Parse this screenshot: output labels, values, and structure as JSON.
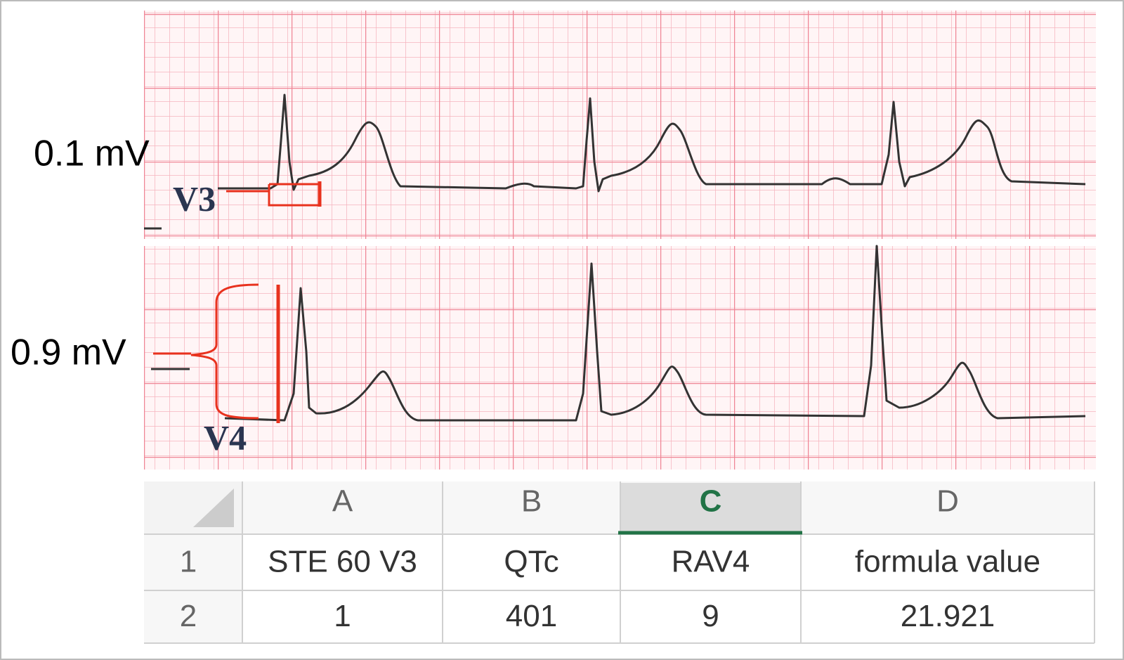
{
  "annotations": {
    "top_amplitude": "0.1 mV",
    "bottom_amplitude": "0.9 mV",
    "top_lead": "V3",
    "bottom_lead": "V4"
  },
  "table": {
    "columns": [
      "A",
      "B",
      "C",
      "D"
    ],
    "row_numbers": [
      1,
      2
    ],
    "rows": [
      [
        "STE 60 V3",
        "QTc",
        "RAV4",
        "formula value"
      ],
      [
        1,
        401,
        9,
        21.921
      ]
    ]
  }
}
